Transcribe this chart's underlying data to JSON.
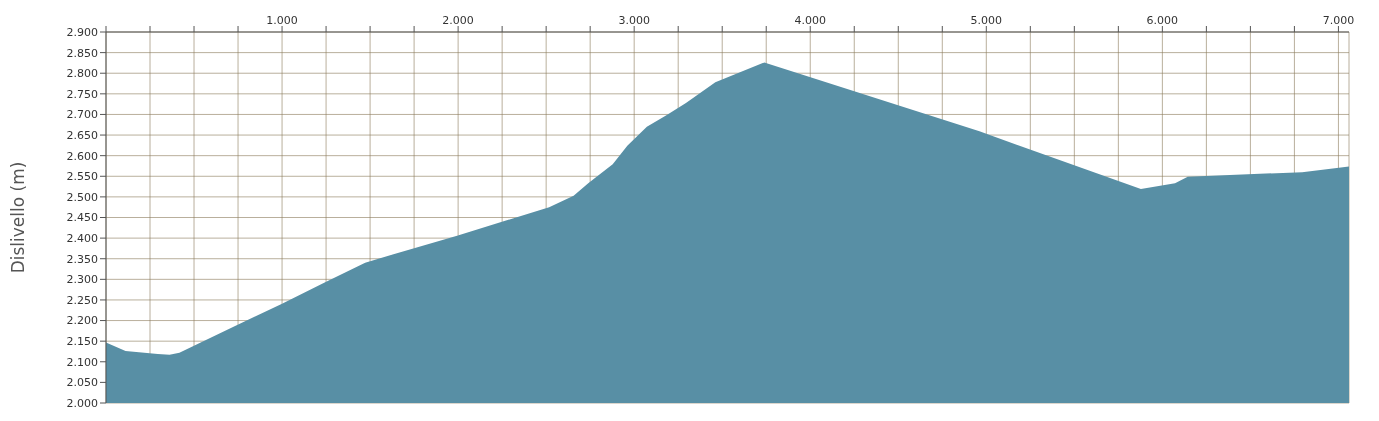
{
  "chart_data": {
    "type": "area",
    "ylabel": "Dislivello (m)",
    "color": "#588fa5",
    "x": [
      0,
      111,
      294,
      361,
      417,
      739,
      1000,
      1239,
      1472,
      1628,
      1994,
      2517,
      2656,
      2739,
      2878,
      2961,
      3072,
      3183,
      3294,
      3461,
      3739,
      4961,
      5878,
      6072,
      6144,
      6794,
      7060
    ],
    "values": [
      2147,
      2126,
      2119,
      2117,
      2122,
      2188,
      2241,
      2292,
      2340,
      2360,
      2406,
      2475,
      2503,
      2533,
      2579,
      2624,
      2670,
      2698,
      2728,
      2778,
      2826,
      2659,
      2519,
      2533,
      2549,
      2560,
      2574
    ],
    "xlim": [
      0,
      7060
    ],
    "xticks": [
      {
        "value": 0,
        "label": null
      },
      {
        "value": 250,
        "label": null
      },
      {
        "value": 500,
        "label": null
      },
      {
        "value": 750,
        "label": null
      },
      {
        "value": 1000,
        "label": "1.000"
      },
      {
        "value": 1250,
        "label": null
      },
      {
        "value": 1500,
        "label": null
      },
      {
        "value": 1750,
        "label": null
      },
      {
        "value": 2000,
        "label": "2.000"
      },
      {
        "value": 2250,
        "label": null
      },
      {
        "value": 2500,
        "label": null
      },
      {
        "value": 2750,
        "label": null
      },
      {
        "value": 3000,
        "label": "3.000"
      },
      {
        "value": 3250,
        "label": null
      },
      {
        "value": 3500,
        "label": null
      },
      {
        "value": 3750,
        "label": null
      },
      {
        "value": 4000,
        "label": "4.000"
      },
      {
        "value": 4250,
        "label": null
      },
      {
        "value": 4500,
        "label": null
      },
      {
        "value": 4750,
        "label": null
      },
      {
        "value": 5000,
        "label": "5.000"
      },
      {
        "value": 5250,
        "label": null
      },
      {
        "value": 5500,
        "label": null
      },
      {
        "value": 5750,
        "label": null
      },
      {
        "value": 6000,
        "label": "6.000"
      },
      {
        "value": 6250,
        "label": null
      },
      {
        "value": 6500,
        "label": null
      },
      {
        "value": 6750,
        "label": null
      },
      {
        "value": 7000,
        "label": "7.000"
      }
    ],
    "ylim": [
      2000,
      2900
    ],
    "yticks": [
      {
        "value": 2000,
        "label": "2.000"
      },
      {
        "value": 2050,
        "label": "2.050"
      },
      {
        "value": 2100,
        "label": "2.100"
      },
      {
        "value": 2150,
        "label": "2.150"
      },
      {
        "value": 2200,
        "label": "2.200"
      },
      {
        "value": 2250,
        "label": "2.250"
      },
      {
        "value": 2300,
        "label": "2.300"
      },
      {
        "value": 2350,
        "label": "2.350"
      },
      {
        "value": 2400,
        "label": "2.400"
      },
      {
        "value": 2450,
        "label": "2.450"
      },
      {
        "value": 2500,
        "label": "2.500"
      },
      {
        "value": 2550,
        "label": "2.550"
      },
      {
        "value": 2600,
        "label": "2.600"
      },
      {
        "value": 2650,
        "label": "2.650"
      },
      {
        "value": 2700,
        "label": "2.700"
      },
      {
        "value": 2750,
        "label": "2.750"
      },
      {
        "value": 2800,
        "label": "2.800"
      },
      {
        "value": 2850,
        "label": "2.850"
      },
      {
        "value": 2900,
        "label": "2.900"
      }
    ],
    "grid": true,
    "tick_labels": "xy"
  }
}
